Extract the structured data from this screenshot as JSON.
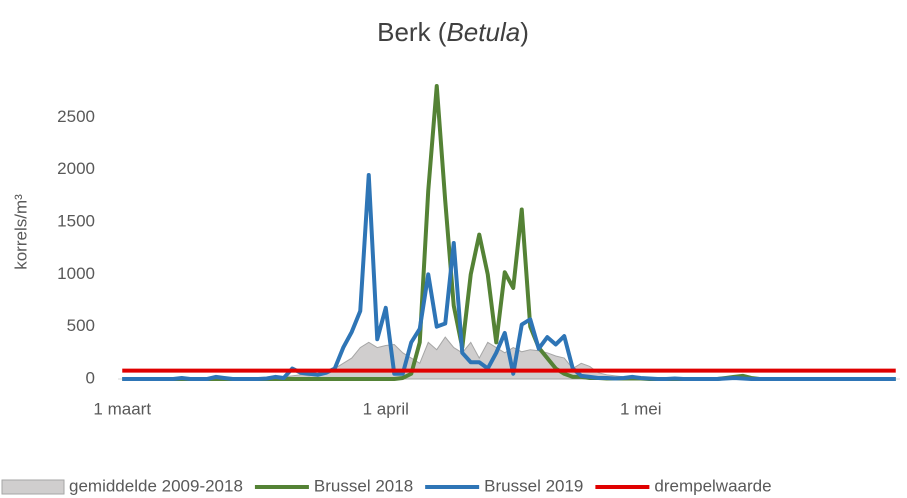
{
  "chart_data": {
    "type": "line",
    "title": [
      "Berk (",
      "Betula",
      ")"
    ],
    "y_label": "korrels/m³",
    "categories": [
      "1 maart",
      null,
      null,
      null,
      null,
      null,
      null,
      null,
      null,
      null,
      null,
      null,
      null,
      null,
      null,
      null,
      null,
      null,
      null,
      null,
      null,
      null,
      null,
      null,
      null,
      null,
      null,
      null,
      null,
      null,
      null,
      "1 april",
      null,
      null,
      null,
      null,
      null,
      null,
      null,
      null,
      null,
      null,
      null,
      null,
      null,
      null,
      null,
      null,
      null,
      null,
      null,
      null,
      null,
      null,
      null,
      null,
      null,
      null,
      null,
      null,
      null,
      "1 mei",
      null,
      null,
      null,
      null,
      null,
      null,
      null,
      null,
      null,
      null,
      null,
      null,
      null,
      null,
      null,
      null,
      null,
      null,
      null,
      null,
      null,
      null,
      null,
      null,
      null,
      null,
      null,
      null,
      null,
      null
    ],
    "ylim": [
      0,
      2800
    ],
    "yticks": [
      0,
      500,
      1000,
      1500,
      2000,
      2500
    ],
    "grid": false,
    "legend": "bottom",
    "series": [
      {
        "name": "gemiddelde 2009-2018",
        "color": "#d0cece",
        "area": true,
        "values": [
          0,
          0,
          0,
          5,
          5,
          5,
          10,
          5,
          5,
          10,
          5,
          5,
          10,
          10,
          5,
          5,
          10,
          10,
          15,
          20,
          30,
          40,
          30,
          50,
          60,
          100,
          150,
          200,
          300,
          350,
          300,
          320,
          330,
          250,
          200,
          150,
          350,
          280,
          400,
          300,
          250,
          350,
          200,
          350,
          300,
          250,
          300,
          260,
          280,
          270,
          250,
          220,
          200,
          100,
          150,
          120,
          60,
          40,
          30,
          20,
          20,
          15,
          10,
          10,
          10,
          5,
          5,
          5,
          5,
          5,
          5,
          5,
          10,
          10,
          5,
          5,
          5,
          0,
          0,
          0,
          0,
          0,
          0,
          0,
          0,
          0,
          0,
          0,
          0,
          0,
          0,
          0
        ]
      },
      {
        "name": "Brussel 2018",
        "color": "#548235",
        "values": [
          0,
          0,
          0,
          0,
          0,
          0,
          0,
          0,
          0,
          0,
          0,
          0,
          0,
          0,
          0,
          0,
          0,
          0,
          0,
          0,
          0,
          0,
          0,
          0,
          0,
          0,
          0,
          0,
          0,
          0,
          0,
          0,
          0,
          10,
          50,
          350,
          1800,
          2800,
          1700,
          700,
          300,
          1000,
          1380,
          1000,
          350,
          1020,
          870,
          1620,
          500,
          300,
          200,
          100,
          50,
          20,
          20,
          10,
          10,
          5,
          5,
          5,
          5,
          5,
          0,
          0,
          0,
          0,
          0,
          0,
          0,
          0,
          0,
          10,
          20,
          30,
          10,
          0,
          0,
          0,
          0,
          0,
          0,
          0,
          0,
          0,
          0,
          0,
          0,
          0,
          0,
          0,
          0,
          0
        ]
      },
      {
        "name": "Brussel 2019",
        "color": "#2e75b6",
        "values": [
          0,
          0,
          0,
          0,
          0,
          0,
          0,
          10,
          0,
          0,
          0,
          20,
          10,
          0,
          0,
          0,
          0,
          5,
          20,
          10,
          100,
          60,
          50,
          40,
          60,
          100,
          300,
          450,
          650,
          1950,
          380,
          680,
          50,
          50,
          350,
          480,
          1000,
          500,
          530,
          1300,
          250,
          160,
          160,
          100,
          250,
          440,
          50,
          520,
          570,
          290,
          400,
          330,
          410,
          100,
          30,
          20,
          10,
          10,
          5,
          10,
          20,
          10,
          5,
          0,
          0,
          5,
          0,
          0,
          0,
          0,
          0,
          5,
          10,
          5,
          0,
          0,
          0,
          0,
          0,
          0,
          0,
          0,
          0,
          0,
          0,
          0,
          0,
          0,
          0,
          0,
          0,
          0
        ]
      },
      {
        "name": "drempelwaarde",
        "color": "#e00000",
        "values": [
          80,
          80,
          80,
          80,
          80,
          80,
          80,
          80,
          80,
          80,
          80,
          80,
          80,
          80,
          80,
          80,
          80,
          80,
          80,
          80,
          80,
          80,
          80,
          80,
          80,
          80,
          80,
          80,
          80,
          80,
          80,
          80,
          80,
          80,
          80,
          80,
          80,
          80,
          80,
          80,
          80,
          80,
          80,
          80,
          80,
          80,
          80,
          80,
          80,
          80,
          80,
          80,
          80,
          80,
          80,
          80,
          80,
          80,
          80,
          80,
          80,
          80,
          80,
          80,
          80,
          80,
          80,
          80,
          80,
          80,
          80,
          80,
          80,
          80,
          80,
          80,
          80,
          80,
          80,
          80,
          80,
          80,
          80,
          80,
          80,
          80,
          80,
          80,
          80,
          80,
          80,
          80
        ]
      }
    ]
  }
}
